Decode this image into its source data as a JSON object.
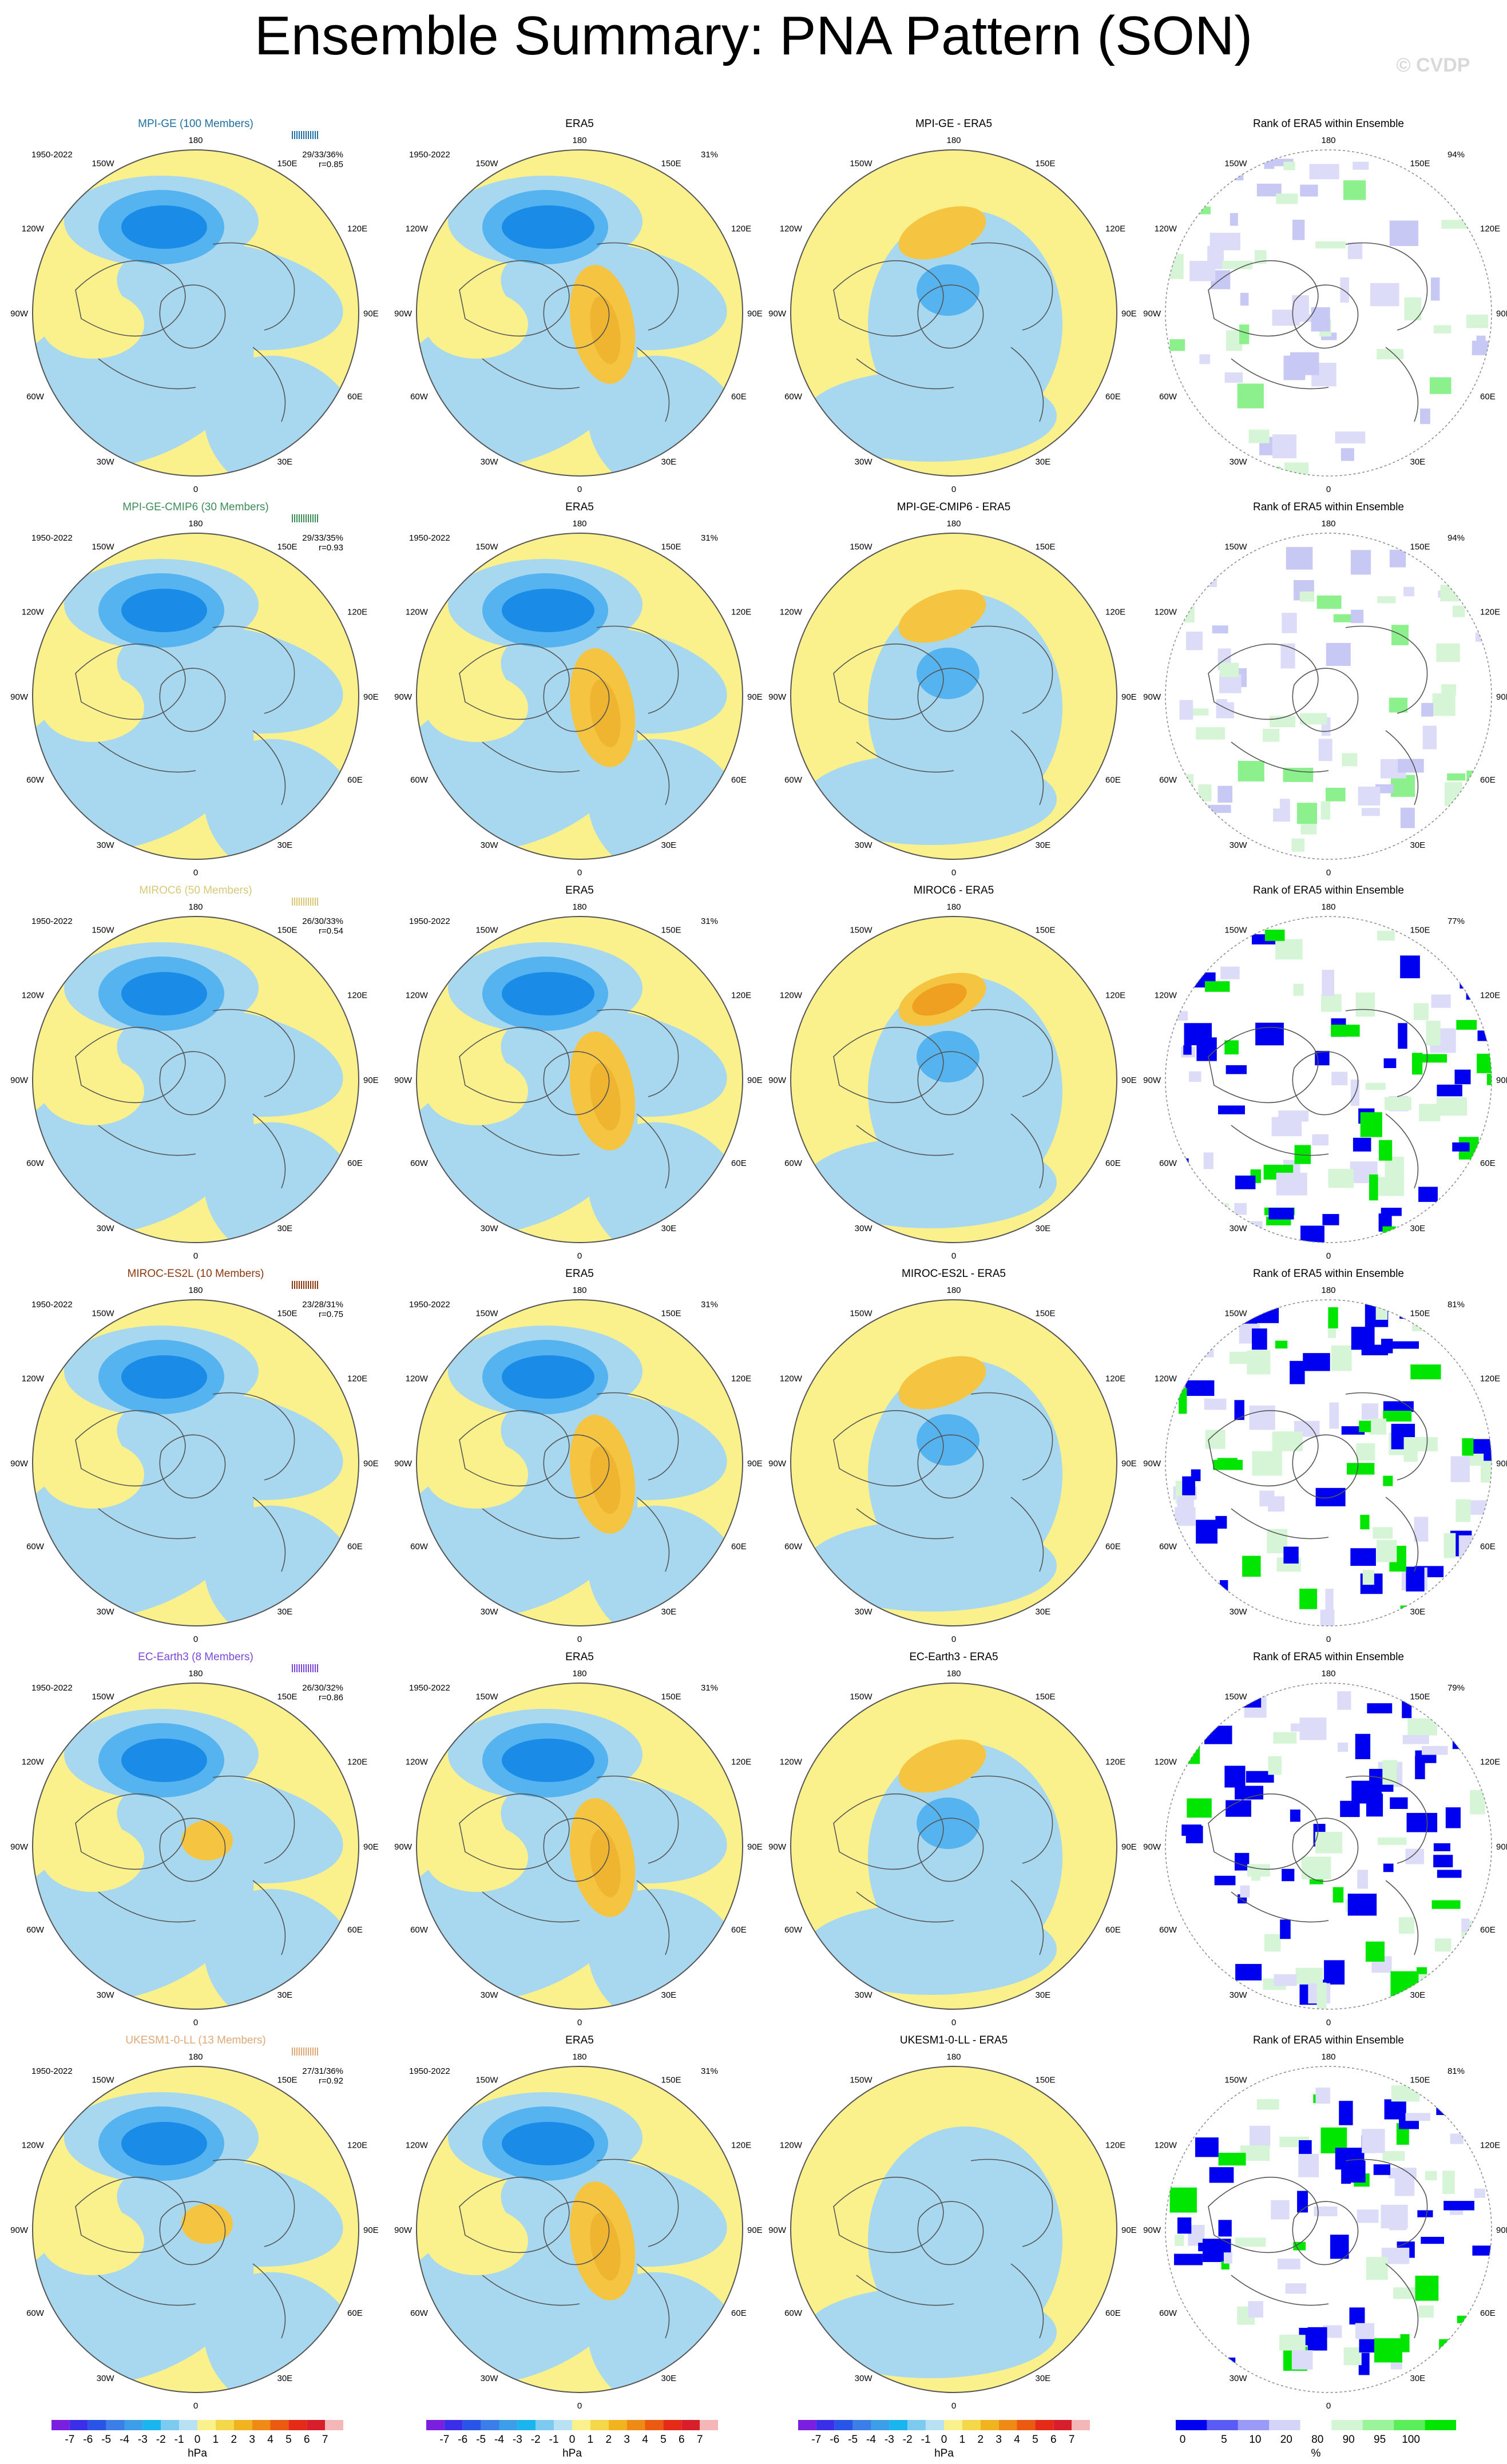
{
  "title": "Ensemble Summary: PNA Pattern (SON)",
  "watermark": "© CVDP",
  "period": "1950-2022",
  "lon_labels": [
    "180",
    "150W",
    "150E",
    "120W",
    "120E",
    "90W",
    "90E",
    "60W",
    "60E",
    "30W",
    "30E",
    "0"
  ],
  "obs_label": "ERA5",
  "obs_pct": "31%",
  "rank_title": "Rank of ERA5 within Ensemble",
  "colors": {
    "deep_blue": "#1a8ce8",
    "mid_blue": "#55b3ef",
    "light_blue": "#a8d8f0",
    "light_yellow": "#faf08c",
    "orange_yellow": "#f5c542",
    "orange": "#f0a020",
    "rank_blue": "#0000f0",
    "rank_green": "#00e600"
  },
  "colorbar_hpa": {
    "labels": [
      "-7",
      "-6",
      "-5",
      "-4",
      "-3",
      "-2",
      "-1",
      "0",
      "1",
      "2",
      "3",
      "4",
      "5",
      "6",
      "7"
    ],
    "unit": "hPa",
    "colors": [
      "#7a1fe0",
      "#3a2ee8",
      "#2855e8",
      "#3c7ee8",
      "#3c9ee8",
      "#1ab4ee",
      "#7dcaf0",
      "#b8e2f4",
      "#faf08c",
      "#f5d74a",
      "#f2b41e",
      "#ef8a14",
      "#ec5a12",
      "#e62a18",
      "#d81e2a",
      "#f4b6b6"
    ]
  },
  "colorbar_rank": {
    "labels": [
      "0",
      "5",
      "10",
      "20",
      "80",
      "90",
      "95",
      "100"
    ],
    "unit": "%",
    "colors": [
      "#0000f0",
      "#5a5af5",
      "#9a9af8",
      "#d4d4f8",
      "#ffffff",
      "#d4f5d4",
      "#9af59a",
      "#5aee5a",
      "#00e600"
    ]
  },
  "chart_data": [
    {
      "type": "heatmap",
      "model": "MPI-GE (100 Members)",
      "model_color": "#1f6fa0",
      "stats": "29/33/36%",
      "corr": "r=0.85",
      "diff_title": "MPI-GE - ERA5",
      "rank_pct": "94%",
      "pattern_corr": 0.85
    },
    {
      "type": "heatmap",
      "model": "MPI-GE-CMIP6 (30 Members)",
      "model_color": "#3d8c5a",
      "stats": "29/33/35%",
      "corr": "r=0.93",
      "diff_title": "MPI-GE-CMIP6 - ERA5",
      "rank_pct": "94%",
      "pattern_corr": 0.93
    },
    {
      "type": "heatmap",
      "model": "MIROC6 (50 Members)",
      "model_color": "#d8c878",
      "stats": "26/30/33%",
      "corr": "r=0.54",
      "diff_title": "MIROC6 - ERA5",
      "rank_pct": "77%",
      "pattern_corr": 0.54
    },
    {
      "type": "heatmap",
      "model": "MIROC-ES2L (10 Members)",
      "model_color": "#8a3a10",
      "stats": "23/28/31%",
      "corr": "r=0.75",
      "diff_title": "MIROC-ES2L - ERA5",
      "rank_pct": "81%",
      "pattern_corr": 0.75
    },
    {
      "type": "heatmap",
      "model": "EC-Earth3 (8 Members)",
      "model_color": "#7a48d8",
      "stats": "26/30/32%",
      "corr": "r=0.86",
      "diff_title": "EC-Earth3 - ERA5",
      "rank_pct": "79%",
      "pattern_corr": 0.86
    },
    {
      "type": "heatmap",
      "model": "UKESM1-0-LL (13 Members)",
      "model_color": "#e0a878",
      "stats": "27/31/36%",
      "corr": "r=0.92",
      "diff_title": "UKESM1-0-LL - ERA5",
      "rank_pct": "81%",
      "pattern_corr": 0.92
    }
  ]
}
